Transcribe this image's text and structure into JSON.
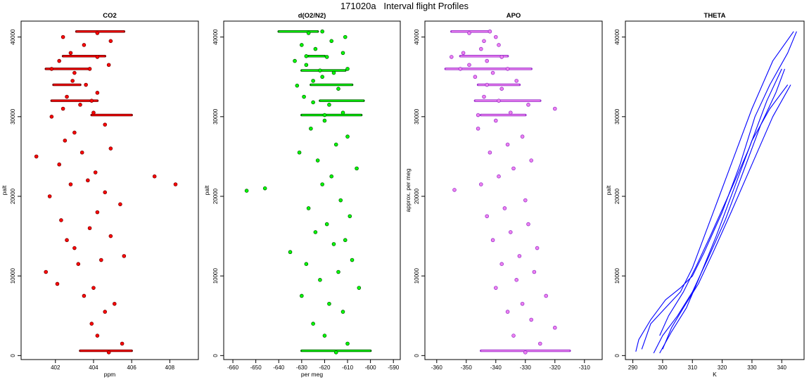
{
  "page_title": "171020a   Interval flight Profiles",
  "chart_data": [
    {
      "type": "scatter",
      "title": "CO2",
      "xlabel": "ppm",
      "ylabel": "palt",
      "xlim": [
        400.2,
        409.5
      ],
      "ylim": [
        -500,
        42000
      ],
      "x_ticks": [
        402,
        404,
        406,
        408
      ],
      "y_ticks": [
        0,
        10000,
        20000,
        30000,
        40000
      ],
      "fill_color": "#ff0000",
      "edge_color": "#7a0000",
      "series": [
        {
          "x": [
            404.8,
            405.5,
            404.2,
            403.9,
            404.6,
            405.1,
            403.5,
            404.0,
            402.1,
            401.5,
            403.2,
            404.4,
            405.6,
            403.0,
            402.6,
            404.9,
            403.8,
            402.3,
            404.2,
            405.4,
            401.7,
            404.6,
            402.8,
            403.7,
            407.2,
            408.3,
            404.1,
            402.2,
            401.0,
            403.4,
            404.9,
            402.5,
            403.0,
            404.6,
            401.8,
            402.4,
            403.9,
            404.0,
            403.3,
            402.6,
            404.2,
            403.6,
            402.9,
            403.0,
            403.8,
            401.8,
            404.8,
            402.2,
            404.2,
            402.8,
            403.5,
            404.9,
            402.4,
            404.2
          ],
          "y": [
            400,
            1500,
            2500,
            4000,
            5500,
            6500,
            7500,
            8500,
            9000,
            10500,
            11500,
            12000,
            12500,
            13500,
            14500,
            15000,
            16000,
            17000,
            18000,
            19000,
            20000,
            20500,
            21500,
            22000,
            22500,
            21500,
            23000,
            24000,
            25000,
            25500,
            26000,
            27000,
            28000,
            29000,
            30000,
            31000,
            32000,
            30500,
            31500,
            32500,
            33000,
            34000,
            34500,
            35500,
            36000,
            36000,
            36500,
            37000,
            37500,
            38000,
            39000,
            39500,
            40000,
            40500
          ]
        }
      ],
      "horizontal_bands": [
        {
          "y": 40700,
          "x0": 403.1,
          "x1": 405.6
        },
        {
          "y": 37600,
          "x0": 402.4,
          "x1": 404.6
        },
        {
          "y": 36000,
          "x0": 401.5,
          "x1": 403.8
        },
        {
          "y": 34000,
          "x0": 401.9,
          "x1": 403.3
        },
        {
          "y": 32000,
          "x0": 401.8,
          "x1": 404.2
        },
        {
          "y": 30200,
          "x0": 403.9,
          "x1": 406.0
        },
        {
          "y": 600,
          "x0": 403.3,
          "x1": 406.0
        }
      ]
    },
    {
      "type": "scatter",
      "title": "d(O2/N2)",
      "xlabel": "per meg",
      "ylabel": "palt",
      "xlim": [
        -664,
        -587
      ],
      "ylim": [
        -500,
        42000
      ],
      "x_ticks": [
        -660,
        -650,
        -640,
        -630,
        -620,
        -610,
        -600,
        -590
      ],
      "y_ticks": [
        0,
        10000,
        20000,
        30000,
        40000
      ],
      "fill_color": "#00ff00",
      "edge_color": "#006400",
      "series": [
        {
          "x": [
            -615,
            -610,
            -620,
            -625,
            -612,
            -618,
            -630,
            -605,
            -622,
            -614,
            -628,
            -608,
            -635,
            -616,
            -611,
            -624,
            -619,
            -609,
            -627,
            -613,
            -654,
            -646,
            -621,
            -617,
            -606,
            -623,
            -631,
            -615,
            -610,
            -626,
            -620,
            -612,
            -618,
            -629,
            -614,
            -625,
            -621,
            -616,
            -610,
            -628,
            -633,
            -619,
            -612,
            -624,
            -630,
            -617,
            -611,
            -627,
            -620,
            -625,
            -632,
            -622,
            -628,
            -621
          ],
          "y": [
            400,
            1500,
            2500,
            4000,
            5500,
            6500,
            7500,
            8500,
            9500,
            10500,
            11500,
            12000,
            13000,
            14000,
            14500,
            15500,
            16500,
            17500,
            18500,
            19500,
            20700,
            21000,
            21500,
            22500,
            23500,
            24500,
            25500,
            26500,
            27500,
            28500,
            29500,
            30500,
            31500,
            32500,
            33500,
            34500,
            35000,
            35500,
            36000,
            36500,
            37000,
            37500,
            38000,
            38500,
            39000,
            39500,
            40000,
            40500,
            30200,
            31800,
            33900,
            35800,
            37600,
            40700
          ]
        }
      ],
      "horizontal_bands": [
        {
          "y": 40700,
          "x0": -640,
          "x1": -623
        },
        {
          "y": 37600,
          "x0": -627,
          "x1": -620
        },
        {
          "y": 35800,
          "x0": -630,
          "x1": -611
        },
        {
          "y": 34000,
          "x0": -626,
          "x1": -608
        },
        {
          "y": 32000,
          "x0": -622,
          "x1": -603
        },
        {
          "y": 30200,
          "x0": -630,
          "x1": -604
        },
        {
          "y": 600,
          "x0": -630,
          "x1": -600
        }
      ]
    },
    {
      "type": "scatter",
      "title": "APO",
      "xlabel": "",
      "ylabel": "approx. per meg",
      "xlim": [
        -364,
        -304
      ],
      "ylim": [
        -500,
        42000
      ],
      "x_ticks": [
        -360,
        -350,
        -340,
        -330,
        -320,
        -310
      ],
      "y_ticks": [
        0,
        10000,
        20000,
        30000,
        40000
      ],
      "fill_color": "#ee82ee",
      "edge_color": "#9932cc",
      "series": [
        {
          "x": [
            -330,
            -325,
            -334,
            -320,
            -328,
            -336,
            -331,
            -323,
            -340,
            -333,
            -327,
            -338,
            -332,
            -326,
            -341,
            -335,
            -329,
            -343,
            -337,
            -330,
            -354,
            -345,
            -339,
            -334,
            -328,
            -342,
            -336,
            -331,
            -346,
            -340,
            -335,
            -329,
            -344,
            -338,
            -333,
            -347,
            -341,
            -336,
            -349,
            -343,
            -338,
            -351,
            -345,
            -339,
            -344,
            -340,
            -349,
            -352,
            -355,
            -343,
            -339,
            -346,
            -342,
            -320
          ],
          "y": [
            400,
            1500,
            2500,
            3500,
            4500,
            5500,
            6500,
            7500,
            8500,
            9500,
            10500,
            11500,
            12500,
            13500,
            14500,
            15500,
            16500,
            17500,
            18500,
            19500,
            20800,
            21500,
            22500,
            23500,
            24500,
            25500,
            26500,
            27500,
            28500,
            29500,
            30500,
            31500,
            32500,
            33500,
            34500,
            35000,
            35500,
            36000,
            36500,
            37000,
            37500,
            38000,
            38500,
            39000,
            39500,
            40000,
            40500,
            36000,
            37500,
            34000,
            32000,
            30200,
            40700,
            31000
          ]
        }
      ],
      "horizontal_bands": [
        {
          "y": 40700,
          "x0": -355,
          "x1": -342
        },
        {
          "y": 37600,
          "x0": -352,
          "x1": -336
        },
        {
          "y": 36000,
          "x0": -357,
          "x1": -328
        },
        {
          "y": 34000,
          "x0": -346,
          "x1": -332
        },
        {
          "y": 32000,
          "x0": -347,
          "x1": -325
        },
        {
          "y": 30200,
          "x0": -345,
          "x1": -330
        },
        {
          "y": 600,
          "x0": -345,
          "x1": -315
        }
      ]
    },
    {
      "type": "line",
      "title": "THETA",
      "xlabel": "K",
      "ylabel": "palt",
      "xlim": [
        287.5,
        347.5
      ],
      "ylim": [
        -500,
        42000
      ],
      "x_ticks": [
        290,
        300,
        310,
        320,
        330,
        340
      ],
      "y_ticks": [
        0,
        10000,
        20000,
        30000,
        40000
      ],
      "line_color": "#0000ff",
      "series": [
        {
          "x": [
            291,
            292,
            296,
            301,
            306,
            310,
            314,
            320,
            326,
            331,
            336,
            342,
            345
          ],
          "y": [
            500,
            2000,
            4500,
            7000,
            8500,
            10000,
            13000,
            18000,
            24000,
            30000,
            34000,
            38000,
            40700
          ]
        },
        {
          "x": [
            344,
            337,
            330,
            324,
            319,
            314,
            310,
            306,
            301,
            296,
            293
          ],
          "y": [
            40700,
            37000,
            31000,
            25000,
            20000,
            15000,
            11000,
            8000,
            6000,
            4000,
            800
          ]
        },
        {
          "x": [
            297,
            300,
            305,
            310,
            315,
            321,
            327,
            333,
            338,
            341
          ],
          "y": [
            300,
            2500,
            5000,
            8000,
            12000,
            17000,
            23000,
            29000,
            33000,
            36000
          ]
        },
        {
          "x": [
            340,
            335,
            329,
            322,
            316,
            311,
            307,
            302,
            299
          ],
          "y": [
            36000,
            32000,
            26000,
            20000,
            15000,
            11000,
            8000,
            5000,
            2500
          ]
        },
        {
          "x": [
            299,
            303,
            308,
            312,
            318,
            324,
            330,
            336,
            342
          ],
          "y": [
            300,
            3000,
            6000,
            9500,
            15000,
            21000,
            27000,
            31000,
            34000
          ]
        },
        {
          "x": [
            343,
            337,
            330,
            323,
            317,
            312,
            307,
            303,
            300
          ],
          "y": [
            34000,
            30000,
            24000,
            18000,
            13000,
            9000,
            6000,
            3500,
            800
          ]
        }
      ]
    }
  ]
}
